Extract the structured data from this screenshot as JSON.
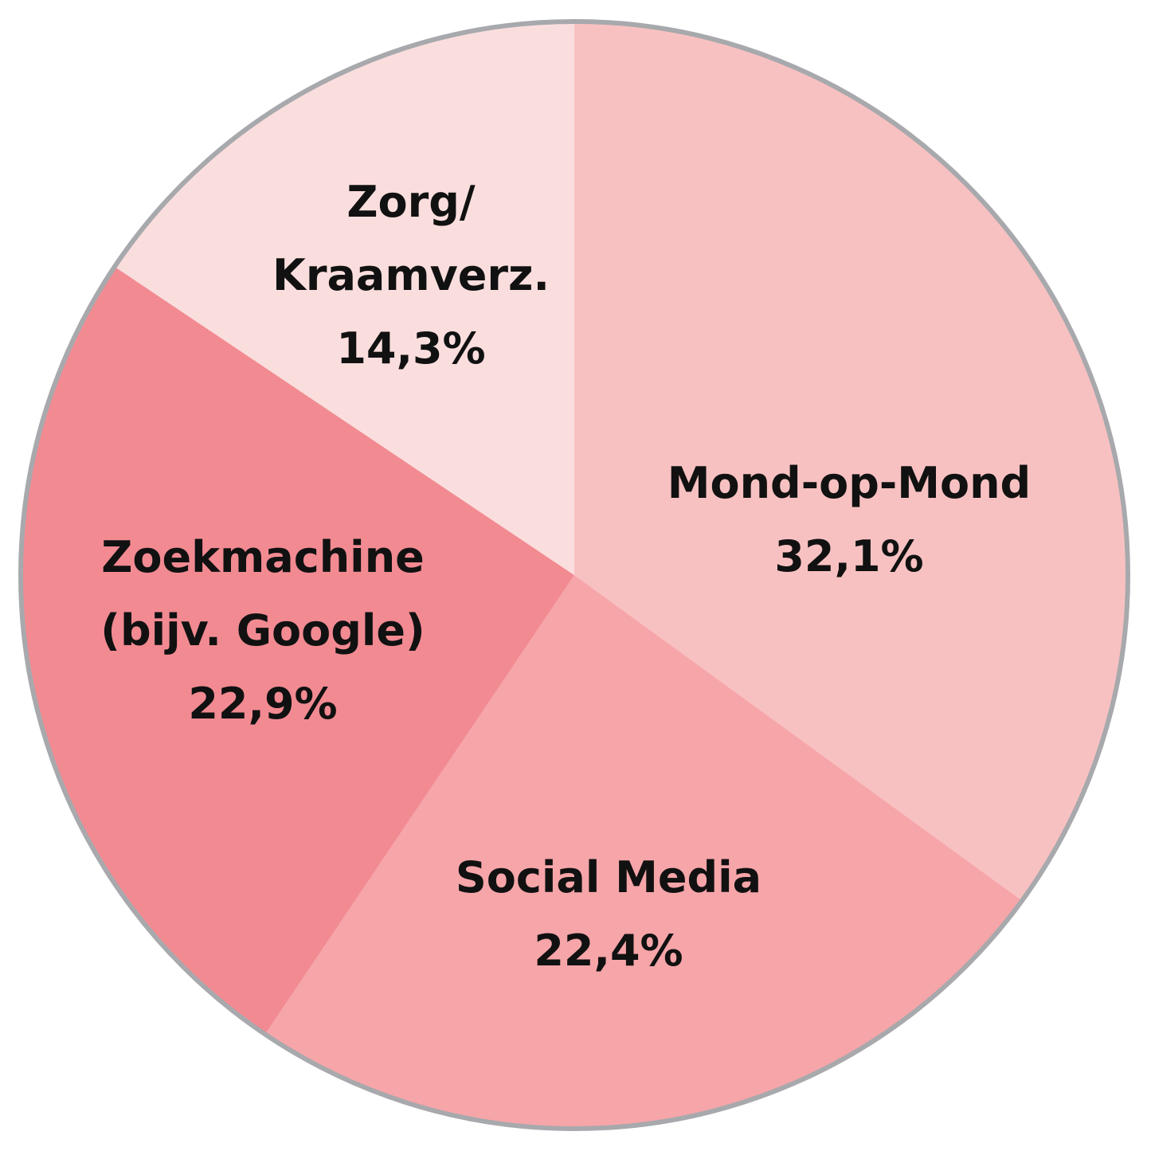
{
  "chart_data": {
    "type": "pie",
    "start": "top",
    "direction": "clockwise",
    "slices": [
      {
        "label_lines": [
          "Mond-op-Mond"
        ],
        "value_label": "32,1%",
        "value": 32.1,
        "color": "#F8C1C1"
      },
      {
        "label_lines": [
          "Social Media"
        ],
        "value_label": "22,4%",
        "value": 22.4,
        "color": "#F6A5A9"
      },
      {
        "label_lines": [
          "Zoekmachine",
          "(bijv. Google)"
        ],
        "value_label": "22,9%",
        "value": 22.9,
        "color": "#F28A92"
      },
      {
        "label_lines": [
          "Zorg/",
          "Kraamverz."
        ],
        "value_label": "14,3%",
        "value": 14.3,
        "color": "#FADEDD"
      }
    ],
    "border_color": "#A7A9AC",
    "legend": "none"
  }
}
